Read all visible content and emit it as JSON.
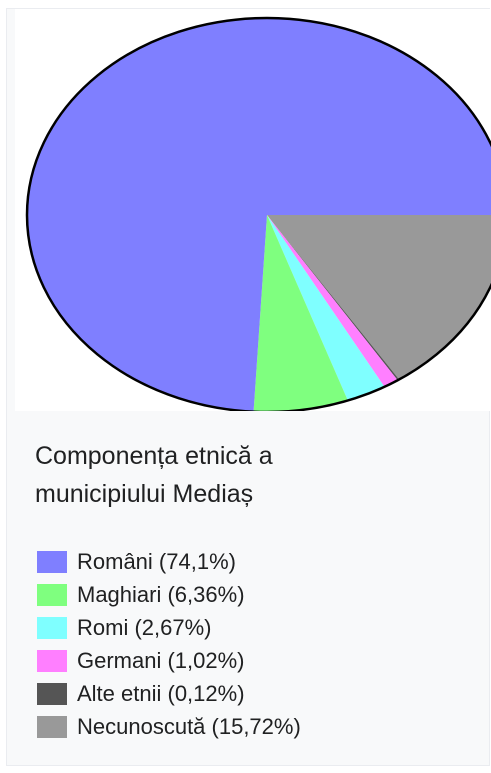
{
  "caption": {
    "line1": "Componența etnică a",
    "line2": "municipiului Mediaș"
  },
  "chart_data": {
    "type": "pie",
    "categories": [
      "Români",
      "Maghiari",
      "Romi",
      "Germani",
      "Alte etnii",
      "Necunoscută"
    ],
    "values": [
      74.1,
      6.36,
      2.67,
      1.02,
      0.12,
      15.72
    ],
    "unit": "%",
    "colors": [
      "#7f7fff",
      "#7fff7f",
      "#7fffff",
      "#ff7fff",
      "#555555",
      "#999999"
    ],
    "legend_labels": [
      "Români (74,1%)",
      "Maghiari (6,36%)",
      "Romi (2,67%)",
      "Germani (1,02%)",
      "Alte etnii (0,12%)",
      "Necunoscută (15,72%)"
    ],
    "legend_position": "bottom"
  }
}
